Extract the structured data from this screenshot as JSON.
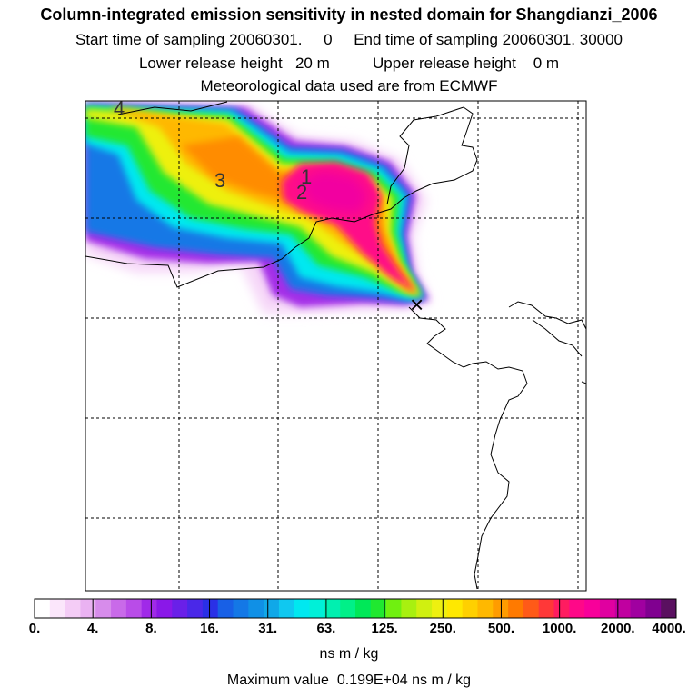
{
  "header": {
    "title": "Column-integrated emission sensitivity in nested domain for Shangdianzi_2006",
    "start_label": "Start time of sampling 20060301.",
    "start_suffix": "0",
    "end_label": "End time of sampling 20060301. 30000",
    "lower_label": "Lower release height",
    "lower_value": "20 m",
    "upper_label": "Upper release height",
    "upper_value": "0 m",
    "met_source": "Meteorological data used are from ECMWF"
  },
  "map": {
    "contour_labels": [
      "4",
      "3",
      "1",
      "2"
    ],
    "release_site_marker": "×"
  },
  "colorbar": {
    "tick_labels": [
      "0.",
      "4.",
      "8.",
      "16.",
      "31.",
      "63.",
      "125.",
      "250.",
      "500.",
      "1000.",
      "2000.",
      "4000."
    ],
    "colors": [
      "#ffffff",
      "#fbe6fb",
      "#f4ccf6",
      "#eab2f2",
      "#d78ceb",
      "#c96ae9",
      "#b94ce8",
      "#a02ae8",
      "#8a18e8",
      "#6a20e8",
      "#4a28e8",
      "#2a30e6",
      "#1860e6",
      "#1478e6",
      "#1090e6",
      "#10a8e8",
      "#10c8f0",
      "#00e8f0",
      "#00f0d8",
      "#00f0b0",
      "#00f088",
      "#00e858",
      "#20e830",
      "#70f010",
      "#a8f010",
      "#d0f010",
      "#eef010",
      "#ffe800",
      "#ffd000",
      "#ffb800",
      "#ff9c00",
      "#ff7a00",
      "#ff5a18",
      "#ff3838",
      "#ff1c60",
      "#ff0888",
      "#f8009a",
      "#e000a0",
      "#c000a0",
      "#a000a0",
      "#800090",
      "#5a1060"
    ],
    "units": "ns m / kg"
  },
  "footer": {
    "max_label": "Maximum value",
    "max_value": "0.199E+04",
    "max_units": "ns m / kg"
  }
}
